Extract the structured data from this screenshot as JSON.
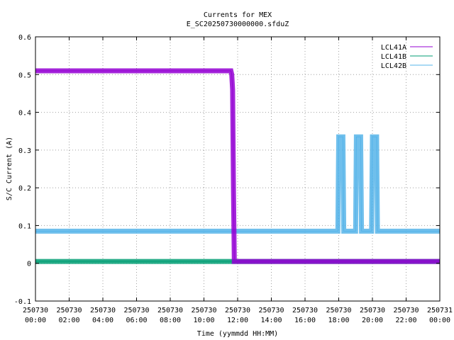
{
  "chart_data": {
    "type": "line",
    "title": "Currents for MEX",
    "subtitle": "E_SC20250730000000.sfduZ",
    "xlabel": "Time (yymmdd HH:MM)",
    "ylabel": "S/C Current (A)",
    "xlim": [
      0,
      24
    ],
    "ylim": [
      -0.1,
      0.6
    ],
    "grid": true,
    "legend_position": "top-right",
    "x_ticks": [
      {
        "value": 0,
        "date": "250730",
        "time": "00:00"
      },
      {
        "value": 2,
        "date": "250730",
        "time": "02:00"
      },
      {
        "value": 4,
        "date": "250730",
        "time": "04:00"
      },
      {
        "value": 6,
        "date": "250730",
        "time": "06:00"
      },
      {
        "value": 8,
        "date": "250730",
        "time": "08:00"
      },
      {
        "value": 10,
        "date": "250730",
        "time": "10:00"
      },
      {
        "value": 12,
        "date": "250730",
        "time": "12:00"
      },
      {
        "value": 14,
        "date": "250730",
        "time": "14:00"
      },
      {
        "value": 16,
        "date": "250730",
        "time": "16:00"
      },
      {
        "value": 18,
        "date": "250730",
        "time": "18:00"
      },
      {
        "value": 20,
        "date": "250730",
        "time": "20:00"
      },
      {
        "value": 22,
        "date": "250730",
        "time": "22:00"
      },
      {
        "value": 24,
        "date": "250731",
        "time": "00:00"
      }
    ],
    "y_ticks": [
      {
        "value": -0.1,
        "label": "-0.1"
      },
      {
        "value": 0,
        "label": "0"
      },
      {
        "value": 0.1,
        "label": "0.1"
      },
      {
        "value": 0.2,
        "label": "0.2"
      },
      {
        "value": 0.3,
        "label": "0.3"
      },
      {
        "value": 0.4,
        "label": "0.4"
      },
      {
        "value": 0.5,
        "label": "0.5"
      },
      {
        "value": 0.6,
        "label": "0.6"
      }
    ],
    "series": [
      {
        "name": "LCL41A",
        "color": "#9400d3",
        "x": [
          0,
          11.6,
          11.65,
          11.7,
          11.75,
          11.8,
          12.0,
          24
        ],
        "y": [
          0.51,
          0.51,
          0.5,
          0.46,
          0.2,
          0.005,
          0.005,
          0.005
        ]
      },
      {
        "name": "LCL41B",
        "color": "#009e73",
        "x": [
          0,
          24
        ],
        "y": [
          0.005,
          0.005
        ]
      },
      {
        "name": "LCL42B",
        "color": "#56b4e9",
        "x": [
          0,
          17.95,
          18.0,
          18.25,
          18.3,
          19.0,
          19.05,
          19.3,
          19.35,
          19.95,
          20.0,
          20.25,
          20.3,
          24
        ],
        "y": [
          0.085,
          0.085,
          0.335,
          0.335,
          0.085,
          0.085,
          0.335,
          0.335,
          0.085,
          0.085,
          0.335,
          0.335,
          0.085,
          0.085
        ]
      }
    ]
  }
}
